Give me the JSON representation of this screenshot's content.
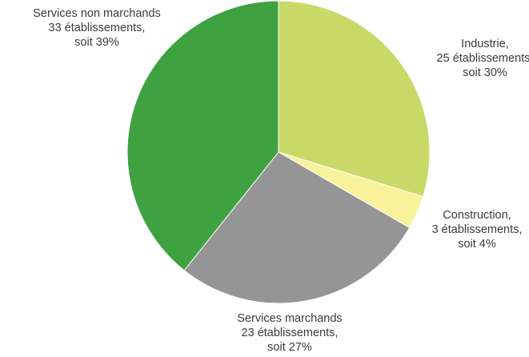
{
  "chart_data": {
    "type": "pie",
    "start_angle_deg": 0,
    "direction": "clockwise",
    "slices": [
      {
        "category": "Industrie",
        "value": 25,
        "percent": 30,
        "color": "#c9da68",
        "label_name": "Industrie,",
        "label_count": "25 établissements,",
        "label_percent": "soit 30%"
      },
      {
        "category": "Construction",
        "value": 3,
        "percent": 4,
        "color": "#f8f29b",
        "label_name": "Construction,",
        "label_count": "3 établissements,",
        "label_percent": "soit 4%"
      },
      {
        "category": "Services marchands",
        "value": 23,
        "percent": 27,
        "color": "#959595",
        "label_name": "Services marchands",
        "label_count": "23 établissements,",
        "label_percent": "soit 27%"
      },
      {
        "category": "Services non marchands",
        "value": 33,
        "percent": 39,
        "color": "#3fa140",
        "label_name": "Services non marchands",
        "label_count": "33 établissements,",
        "label_percent": "soit 39%"
      }
    ]
  }
}
